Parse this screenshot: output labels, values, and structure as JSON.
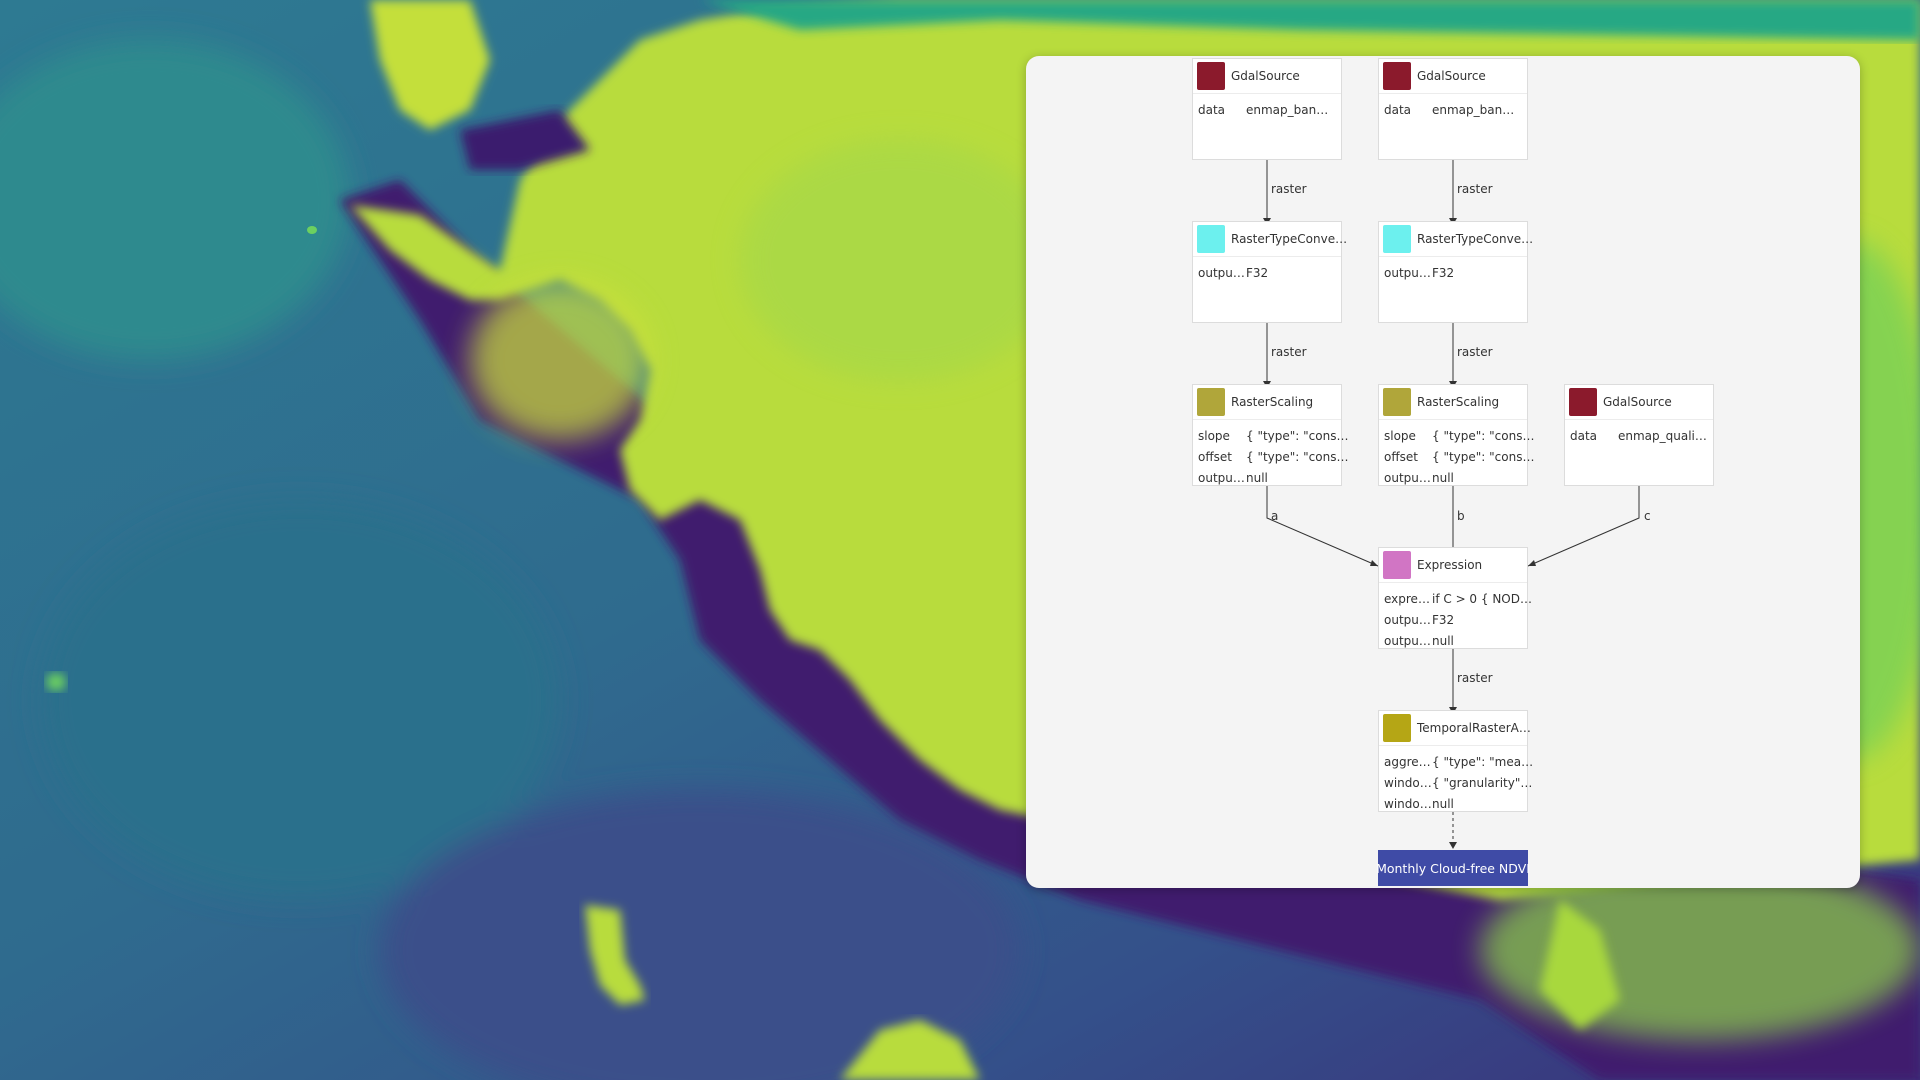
{
  "colors": {
    "swatch_gdal": "#8b1a2c",
    "swatch_convert": "#6cf0ee",
    "swatch_scaling": "#b0a63a",
    "swatch_expression": "#d175c4",
    "swatch_temporal": "#b5a615",
    "output_bg": "#3f4ba6",
    "panel_bg": "#f4f4f4"
  },
  "icons": {
    "node_type": "colored-square-icon"
  },
  "nodes": [
    {
      "title": "GdalSource",
      "params": [
        {
          "k": "data",
          "v": "enmap_ban…"
        }
      ]
    },
    {
      "title": "GdalSource",
      "params": [
        {
          "k": "data",
          "v": "enmap_ban…"
        }
      ]
    },
    {
      "title": "RasterTypeConve…",
      "params": [
        {
          "k": "outpu…",
          "v": "F32"
        }
      ]
    },
    {
      "title": "RasterTypeConve…",
      "params": [
        {
          "k": "outpu…",
          "v": "F32"
        }
      ]
    },
    {
      "title": "RasterScaling",
      "params": [
        {
          "k": "slope",
          "v": "{ \"type\": \"cons…"
        },
        {
          "k": "offset",
          "v": "{ \"type\": \"cons…"
        },
        {
          "k": "outpu…",
          "v": "null"
        }
      ]
    },
    {
      "title": "RasterScaling",
      "params": [
        {
          "k": "slope",
          "v": "{ \"type\": \"cons…"
        },
        {
          "k": "offset",
          "v": "{ \"type\": \"cons…"
        },
        {
          "k": "outpu…",
          "v": "null"
        }
      ]
    },
    {
      "title": "GdalSource",
      "params": [
        {
          "k": "data",
          "v": "enmap_quali…"
        }
      ]
    },
    {
      "title": "Expression",
      "params": [
        {
          "k": "expre…",
          "v": "if C > 0 { NOD…"
        },
        {
          "k": "outpu…",
          "v": "F32"
        },
        {
          "k": "outpu…",
          "v": "null"
        }
      ]
    },
    {
      "title": "TemporalRasterA…",
      "params": [
        {
          "k": "aggre…",
          "v": "{ \"type\": \"mea…"
        },
        {
          "k": "windo…",
          "v": "{ \"granularity\"…"
        },
        {
          "k": "windo…",
          "v": "null"
        }
      ]
    }
  ],
  "edge_labels": [
    "raster",
    "raster",
    "raster",
    "raster",
    "a",
    "b",
    "c",
    "raster"
  ],
  "output": {
    "label": "Monthly Cloud-free NDVI"
  }
}
